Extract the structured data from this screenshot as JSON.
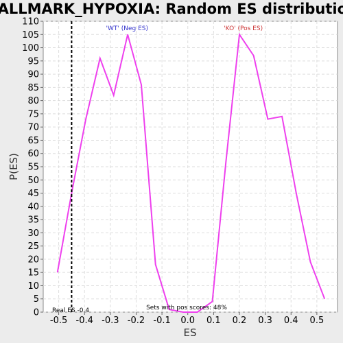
{
  "chart_data": {
    "type": "line",
    "title": "HALLMARK_HYPOXIA: Random ES distribution",
    "xlabel": "ES",
    "ylabel": "P(ES)",
    "xlim": [
      -0.56,
      0.58
    ],
    "ylim": [
      0,
      110
    ],
    "x_ticks": [
      "-0.5",
      "-0.4",
      "-0.3",
      "-0.2",
      "-0.1",
      "0.0",
      "0.1",
      "0.2",
      "0.3",
      "0.4",
      "0.5"
    ],
    "y_ticks": [
      "0",
      "5",
      "10",
      "15",
      "20",
      "25",
      "30",
      "35",
      "40",
      "45",
      "50",
      "55",
      "60",
      "65",
      "70",
      "75",
      "80",
      "85",
      "90",
      "95",
      "100",
      "105",
      "110"
    ],
    "grid": true,
    "series": [
      {
        "color": "#ee40ee",
        "x": [
          -0.505,
          -0.45,
          -0.395,
          -0.34,
          -0.287,
          -0.233,
          -0.18,
          -0.125,
          -0.072,
          -0.018,
          0.037,
          0.095,
          0.148,
          0.2,
          0.255,
          0.31,
          0.365,
          0.42,
          0.475,
          0.53
        ],
        "y": [
          15,
          45,
          73,
          96,
          82,
          105,
          86,
          18,
          1,
          0,
          0,
          4,
          57,
          105,
          97,
          73,
          74,
          45,
          19,
          5
        ]
      }
    ],
    "real_es": -0.45,
    "real_es_color": "#000000",
    "annotations": {
      "neg_label": "'WT' (Neg ES)",
      "neg_color": "#3333cc",
      "pos_label": "'KO' (Pos ES)",
      "pos_color": "#cc3333",
      "real_es_label": "Real ES -0.4",
      "pos_scores_label": "Sets with pos scores: 48%"
    }
  }
}
